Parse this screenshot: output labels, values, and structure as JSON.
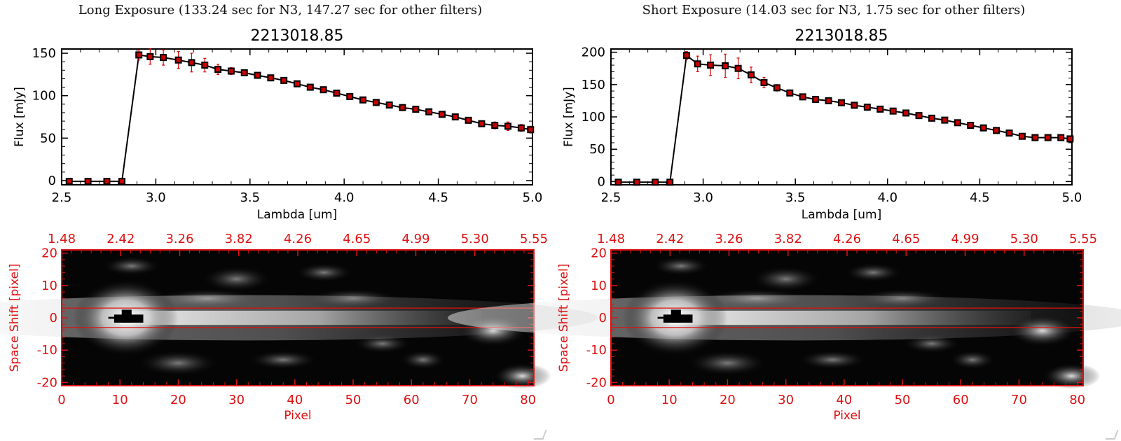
{
  "panels": [
    {
      "title": "Long Exposure (133.24 sec for N3, 147.27 sec for other filters)",
      "object_id": "2213018.85"
    },
    {
      "title": "Short Exposure (14.03 sec for N3, 1.75 sec for other filters)",
      "object_id": "2213018.85"
    }
  ],
  "chart_data": [
    {
      "type": "line",
      "title": "2213018.85",
      "xlabel": "Lambda [um]",
      "ylabel": "Flux [mJy]",
      "xlim": [
        2.5,
        5.0
      ],
      "ylim": [
        -5,
        155
      ],
      "x_ticks": [
        "2.5",
        "3.0",
        "3.5",
        "4.0",
        "4.5",
        "5.0"
      ],
      "y_ticks": [
        "0",
        "50",
        "100",
        "150"
      ],
      "colors": {
        "line": "#000000",
        "marker": "#cc0000",
        "error": "#dd0000"
      },
      "x": [
        2.54,
        2.64,
        2.74,
        2.82,
        2.91,
        2.97,
        3.04,
        3.12,
        3.19,
        3.26,
        3.33,
        3.4,
        3.47,
        3.54,
        3.61,
        3.68,
        3.75,
        3.82,
        3.89,
        3.96,
        4.03,
        4.1,
        4.17,
        4.24,
        4.31,
        4.38,
        4.45,
        4.52,
        4.59,
        4.66,
        4.73,
        4.8,
        4.87,
        4.94,
        4.99
      ],
      "y": [
        -1,
        -1,
        -1,
        -1,
        148,
        146,
        145,
        142,
        139,
        136,
        131,
        129,
        127,
        124,
        121,
        118,
        114,
        110,
        107,
        103,
        99,
        95,
        92,
        89,
        86,
        84,
        81,
        78,
        75,
        71,
        67,
        65,
        64,
        62,
        60
      ],
      "yerr": [
        0,
        0,
        0,
        0,
        6,
        9,
        9,
        10,
        11,
        8,
        6,
        4,
        3,
        2,
        2,
        2,
        2,
        2,
        2,
        2,
        2,
        2,
        2,
        2,
        2,
        2,
        2,
        2,
        2,
        2,
        3,
        4,
        5,
        4,
        4
      ]
    },
    {
      "type": "heatmap",
      "xlabel": "Pixel",
      "ylabel": "Space Shift [pixel]",
      "xlim": [
        0,
        81
      ],
      "ylim": [
        -21,
        21
      ],
      "x_ticks": [
        "0",
        "10",
        "20",
        "30",
        "40",
        "50",
        "60",
        "70",
        "80"
      ],
      "y_ticks": [
        "20",
        "10",
        "0",
        "-10",
        "-20"
      ],
      "top_ticks": [
        "1.48",
        "2.42",
        "3.26",
        "3.82",
        "4.26",
        "4.65",
        "4.99",
        "5.30",
        "5.55"
      ],
      "aperture": [
        -3,
        3
      ]
    },
    {
      "type": "line",
      "title": "2213018.85",
      "xlabel": "Lambda [um]",
      "ylabel": "Flux [mJy]",
      "xlim": [
        2.5,
        5.0
      ],
      "ylim": [
        -5,
        205
      ],
      "x_ticks": [
        "2.5",
        "3.0",
        "3.5",
        "4.0",
        "4.5",
        "5.0"
      ],
      "y_ticks": [
        "0",
        "50",
        "100",
        "150",
        "200"
      ],
      "colors": {
        "line": "#000000",
        "marker": "#cc0000",
        "error": "#dd0000"
      },
      "x": [
        2.54,
        2.64,
        2.74,
        2.82,
        2.91,
        2.97,
        3.04,
        3.12,
        3.19,
        3.26,
        3.33,
        3.4,
        3.47,
        3.54,
        3.61,
        3.68,
        3.75,
        3.82,
        3.89,
        3.96,
        4.03,
        4.1,
        4.17,
        4.24,
        4.31,
        4.38,
        4.45,
        4.52,
        4.59,
        4.66,
        4.73,
        4.8,
        4.87,
        4.94,
        4.99
      ],
      "y": [
        -1,
        -1,
        -1,
        -1,
        195,
        182,
        180,
        179,
        175,
        165,
        153,
        145,
        137,
        131,
        127,
        125,
        122,
        118,
        115,
        112,
        109,
        106,
        102,
        98,
        95,
        91,
        87,
        83,
        79,
        75,
        70,
        68,
        68,
        68,
        66
      ],
      "yerr": [
        0,
        0,
        0,
        0,
        6,
        12,
        16,
        18,
        16,
        12,
        8,
        5,
        3,
        3,
        2,
        2,
        2,
        2,
        2,
        2,
        2,
        2,
        2,
        2,
        2,
        2,
        2,
        2,
        2,
        2,
        3,
        3,
        3,
        3,
        3
      ]
    },
    {
      "type": "heatmap",
      "xlabel": "Pixel",
      "ylabel": "Space Shift [pixel]",
      "xlim": [
        0,
        81
      ],
      "ylim": [
        -21,
        21
      ],
      "x_ticks": [
        "0",
        "10",
        "20",
        "30",
        "40",
        "50",
        "60",
        "70",
        "80"
      ],
      "y_ticks": [
        "20",
        "10",
        "0",
        "-10",
        "-20"
      ],
      "top_ticks": [
        "1.48",
        "2.42",
        "3.26",
        "3.82",
        "4.26",
        "4.65",
        "4.99",
        "5.30",
        "5.55"
      ],
      "aperture": [
        -3,
        3
      ]
    }
  ]
}
